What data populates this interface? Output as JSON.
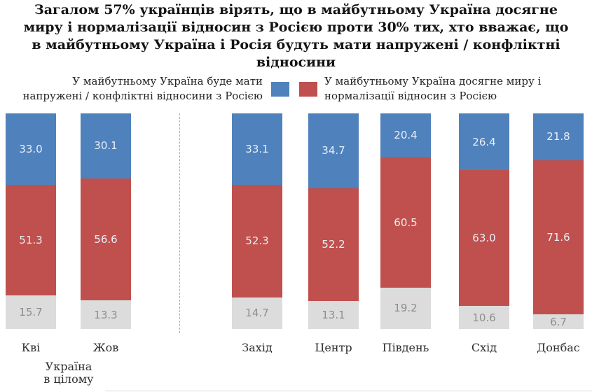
{
  "title": "Загалом 57% українців вірять, що в майбутньому Україна досягне\nмиру і нормалізації відносин з Росією проти 30% тих, хто вважає, що\nв майбутньому Україна і Росія будуть мати напружені / конфліктні\nвідносини",
  "legend": {
    "tense_label": "У майбутньому Україна буде мати\nнапружені / конфліктні відносини з Росією",
    "peace_label": "У майбутньому Україна досягне миру і\nнормалізації відносин з Росією",
    "tense_color": "#4f81bd",
    "peace_color": "#c0504d"
  },
  "chart_data": {
    "type": "bar",
    "stacked": true,
    "ylim": [
      0,
      100
    ],
    "categories": [
      "Кві",
      "Жов",
      "Захід",
      "Центр",
      "Південь",
      "Схід",
      "Донбас"
    ],
    "series": [
      {
        "name": "У майбутньому Україна буде мати напружені / конфліктні відносини з Росією",
        "color": "#4f81bd",
        "values": [
          33.0,
          30.1,
          33.1,
          34.7,
          20.4,
          26.4,
          21.8
        ]
      },
      {
        "name": "У майбутньому Україна досягне миру і нормалізації відносин з Росією",
        "color": "#c0504d",
        "values": [
          51.3,
          56.6,
          52.3,
          52.2,
          60.5,
          63.0,
          71.6
        ]
      },
      {
        "name": "",
        "color": "#dcdcdc",
        "values": [
          15.7,
          13.3,
          14.7,
          13.1,
          19.2,
          10.6,
          6.7
        ]
      }
    ],
    "group_label": "Україна\nв цілому"
  }
}
